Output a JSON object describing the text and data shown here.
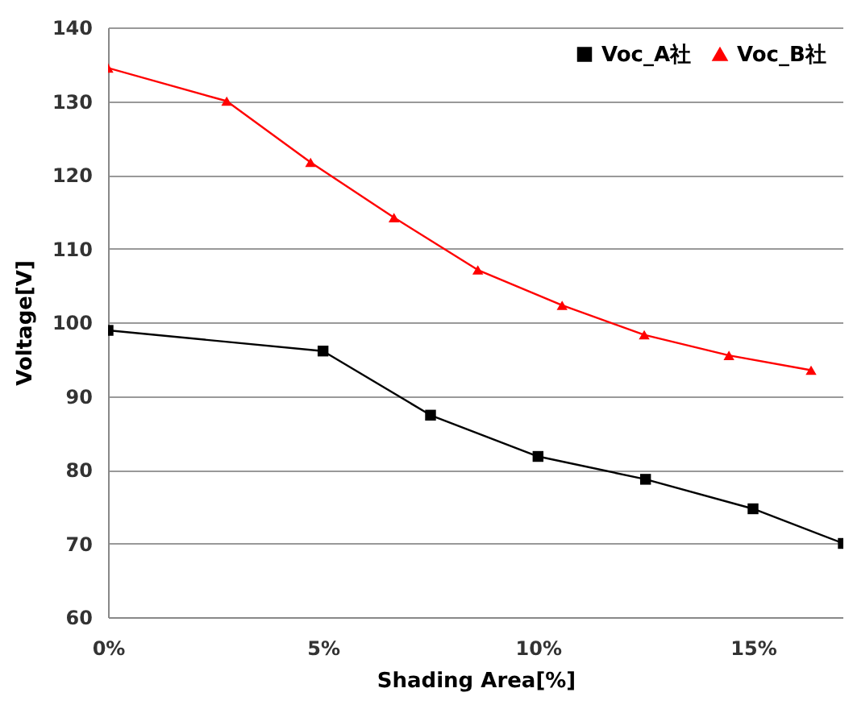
{
  "chart_data": {
    "type": "line",
    "xlabel": "Shading Area[%]",
    "ylabel": "Voltage[V]",
    "xlim": [
      0,
      17.1
    ],
    "ylim": [
      60,
      140
    ],
    "xticks": [
      {
        "value": 0,
        "label": "0%"
      },
      {
        "value": 5,
        "label": "5%"
      },
      {
        "value": 10,
        "label": "10%"
      },
      {
        "value": 15,
        "label": "15%"
      }
    ],
    "yticks": [
      60,
      70,
      80,
      90,
      100,
      110,
      120,
      130,
      140
    ],
    "grid": "y",
    "legend": "top right",
    "series": [
      {
        "name": "Voc_A社",
        "color": "#000000",
        "marker": "square",
        "x": [
          0,
          5,
          7.5,
          10,
          12.5,
          15,
          17.1
        ],
        "values": [
          98.9,
          96.1,
          87.4,
          81.8,
          78.7,
          74.7,
          70
        ]
      },
      {
        "name": "Voc_B社",
        "color": "#ff0000",
        "marker": "triangle",
        "x": [
          0,
          2.76,
          4.71,
          6.65,
          8.6,
          10.56,
          12.47,
          14.44,
          16.35
        ],
        "values": [
          134.5,
          130,
          121.7,
          114.2,
          107.1,
          102.3,
          98.3,
          95.5,
          93.5
        ]
      }
    ]
  }
}
